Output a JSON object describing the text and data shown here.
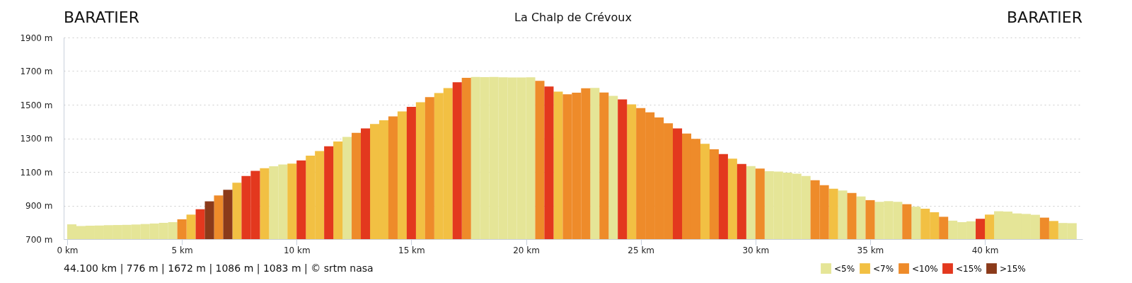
{
  "chart_data": {
    "type": "bar",
    "title": "La Chalp de Crévoux",
    "annotations": [
      "BARATIER",
      "BARATIER",
      "44.100 km | 776 m | 1672 m | 1086 m | 1083 m | © srtm nasa"
    ],
    "xlim": [
      0,
      44.1
    ],
    "xticks": [
      {
        "value": 0,
        "label": "0 km"
      },
      {
        "value": 5,
        "label": "5 km"
      },
      {
        "value": 10,
        "label": "10 km"
      },
      {
        "value": 15,
        "label": "15 km"
      },
      {
        "value": 20,
        "label": "20 km"
      },
      {
        "value": 25,
        "label": "25 km"
      },
      {
        "value": 30,
        "label": "30 km"
      },
      {
        "value": 35,
        "label": "35 km"
      },
      {
        "value": 40,
        "label": "40 km"
      }
    ],
    "ylim": [
      700,
      1900
    ],
    "yticks": [
      {
        "value": 700,
        "label": "700 m"
      },
      {
        "value": 900,
        "label": "900 m"
      },
      {
        "value": 1100,
        "label": "1100 m"
      },
      {
        "value": 1300,
        "label": "1300 m"
      },
      {
        "value": 1500,
        "label": "1500 m"
      },
      {
        "value": 1700,
        "label": "1700 m"
      },
      {
        "value": 1900,
        "label": "1900 m"
      }
    ],
    "grid": "y",
    "legend": "bottom right",
    "series": [
      {
        "name": "<5%",
        "color": "#e5e597",
        "x": [
          0.2,
          0.6,
          1.0,
          1.4,
          1.8,
          2.2,
          2.6,
          3.0,
          3.4,
          3.8,
          4.2,
          4.6,
          9.0,
          9.4,
          12.2,
          17.8,
          18.2,
          18.6,
          19.0,
          19.4,
          19.8,
          20.2,
          23.0,
          23.8,
          29.8,
          30.6,
          31.0,
          31.4,
          31.8,
          32.2,
          33.8,
          34.6,
          35.4,
          35.8,
          36.2,
          37.0,
          38.6,
          39.0,
          39.4,
          40.6,
          41.0,
          41.4,
          41.8,
          42.2,
          43.4,
          43.8
        ],
        "values": [
          788,
          778,
          780,
          781,
          783,
          784,
          785,
          787,
          790,
          793,
          797,
          801,
          1134,
          1144,
          1308,
          1665,
          1664,
          1665,
          1663,
          1662,
          1662,
          1663,
          1600,
          1553,
          1135,
          1104,
          1102,
          1096,
          1090,
          1076,
          990,
          954,
          922,
          926,
          922,
          893,
          810,
          801,
          806,
          866,
          864,
          853,
          850,
          845,
          796,
          795
        ]
      },
      {
        "name": "<7%",
        "color": "#f2c043",
        "x": [
          5.4,
          7.4,
          8.6,
          9.8,
          10.6,
          11.0,
          11.8,
          13.4,
          13.8,
          14.6,
          15.4,
          16.2,
          16.6,
          21.4,
          24.6,
          27.8,
          29.0,
          33.4,
          37.4,
          37.8,
          40.2,
          43.0
        ],
        "values": [
          846,
          1036,
          1122,
          1149,
          1197,
          1224,
          1281,
          1385,
          1407,
          1460,
          1515,
          1569,
          1599,
          1578,
          1502,
          1267,
          1179,
          1000,
          881,
          860,
          846,
          808
        ]
      },
      {
        "name": "<10%",
        "color": "#ee8b2a",
        "x": [
          5.0,
          6.6,
          12.6,
          14.2,
          15.8,
          17.4,
          20.6,
          21.8,
          22.2,
          22.6,
          23.4,
          25.0,
          25.4,
          25.8,
          26.2,
          27.0,
          27.4,
          28.2,
          30.2,
          32.6,
          33.0,
          34.2,
          35.0,
          36.6,
          38.2,
          42.6
        ],
        "values": [
          818,
          960,
          1333,
          1431,
          1545,
          1660,
          1642,
          1562,
          1572,
          1598,
          1573,
          1480,
          1455,
          1424,
          1390,
          1328,
          1297,
          1235,
          1120,
          1051,
          1021,
          975,
          932,
          908,
          833,
          828
        ]
      },
      {
        "name": "<15%",
        "color": "#e3381e",
        "x": [
          5.8,
          7.8,
          8.2,
          10.2,
          11.4,
          13.0,
          15.0,
          17.0,
          21.0,
          24.2,
          26.6,
          28.6,
          29.4,
          39.8
        ],
        "values": [
          878,
          1076,
          1106,
          1168,
          1253,
          1359,
          1487,
          1634,
          1608,
          1532,
          1359,
          1206,
          1147,
          821
        ]
      },
      {
        "name": ">15%",
        "color": "#8b3a1a",
        "x": [
          6.2,
          7.0
        ],
        "values": [
          925,
          994
        ]
      }
    ]
  }
}
